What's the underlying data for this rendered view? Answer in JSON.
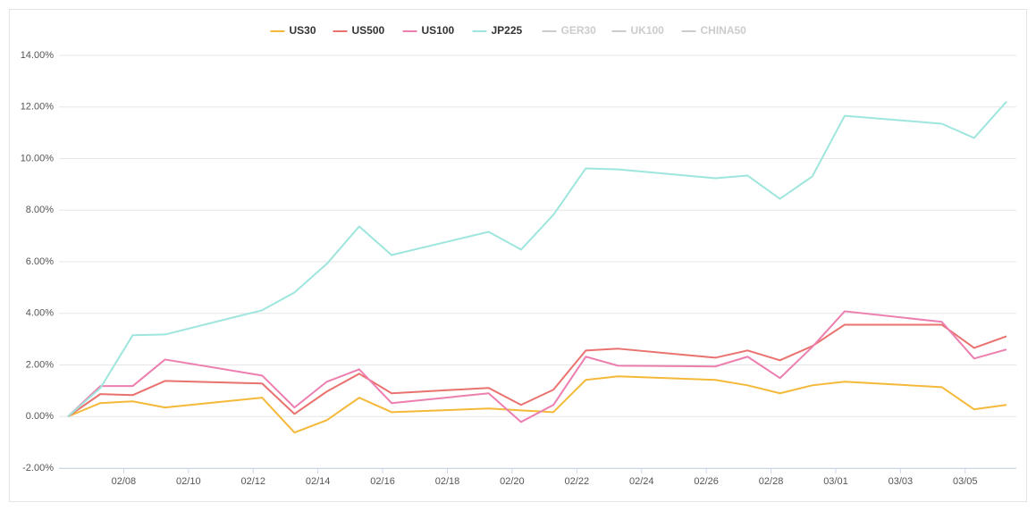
{
  "chart_data": {
    "type": "line",
    "x": [
      "02/06",
      "02/07",
      "02/08",
      "02/09",
      "02/12",
      "02/13",
      "02/14",
      "02/15",
      "02/16",
      "02/19",
      "02/20",
      "02/21",
      "02/22",
      "02/23",
      "02/26",
      "02/27",
      "02/28",
      "02/29",
      "03/01",
      "03/04",
      "03/05",
      "03/06"
    ],
    "series": [
      {
        "name": "US30",
        "color": "#f5b939",
        "visible": true,
        "values": [
          0,
          0.52,
          0.59,
          0.35,
          0.73,
          -0.62,
          -0.14,
          0.73,
          0.17,
          0.31,
          0.24,
          0.17,
          1.42,
          1.56,
          1.42,
          1.21,
          0.9,
          1.21,
          1.35,
          1.14,
          0.28,
          0.45
        ]
      },
      {
        "name": "US500",
        "color": "#e9726e",
        "visible": true,
        "values": [
          0,
          0.87,
          0.83,
          1.38,
          1.28,
          0.1,
          0.97,
          1.66,
          0.9,
          1.11,
          0.45,
          1.04,
          2.56,
          2.63,
          2.28,
          2.56,
          2.18,
          2.73,
          3.56,
          3.56,
          2.66,
          3.11
        ]
      },
      {
        "name": "US100",
        "color": "#ec7fb0",
        "visible": true,
        "values": [
          0,
          1.18,
          1.18,
          2.21,
          1.59,
          0.35,
          1.35,
          1.83,
          0.52,
          0.9,
          -0.21,
          0.45,
          2.32,
          1.97,
          1.94,
          2.32,
          1.49,
          2.7,
          4.08,
          3.67,
          2.25,
          2.6
        ]
      },
      {
        "name": "JP225",
        "color": "#9ee6dd",
        "visible": true,
        "values": [
          0,
          1.1,
          3.15,
          3.18,
          4.12,
          4.81,
          5.92,
          7.37,
          6.26,
          7.16,
          6.47,
          7.82,
          9.62,
          9.58,
          9.24,
          9.34,
          8.44,
          9.31,
          11.66,
          11.35,
          10.8,
          12.21
        ]
      },
      {
        "name": "GER30",
        "color": "#cccccc",
        "visible": false
      },
      {
        "name": "UK100",
        "color": "#cccccc",
        "visible": false
      },
      {
        "name": "CHINA50",
        "color": "#cccccc",
        "visible": false
      }
    ],
    "xticks": [
      "02/08",
      "02/10",
      "02/12",
      "02/14",
      "02/16",
      "02/18",
      "02/20",
      "02/22",
      "02/24",
      "02/26",
      "02/28",
      "03/01",
      "03/03",
      "03/05"
    ],
    "ylim": [
      -2,
      14
    ],
    "yticks": [
      {
        "value": -2,
        "label": "-2.00%"
      },
      {
        "value": 0,
        "label": "0.00%"
      },
      {
        "value": 2,
        "label": "2.00%"
      },
      {
        "value": 4,
        "label": "4.00%"
      },
      {
        "value": 6,
        "label": "6.00%"
      },
      {
        "value": 8,
        "label": "8.00%"
      },
      {
        "value": 10,
        "label": "10.00%"
      },
      {
        "value": 12,
        "label": "12.00%"
      },
      {
        "value": 14,
        "label": "14.00%"
      }
    ],
    "grid": true,
    "legend": "top"
  }
}
